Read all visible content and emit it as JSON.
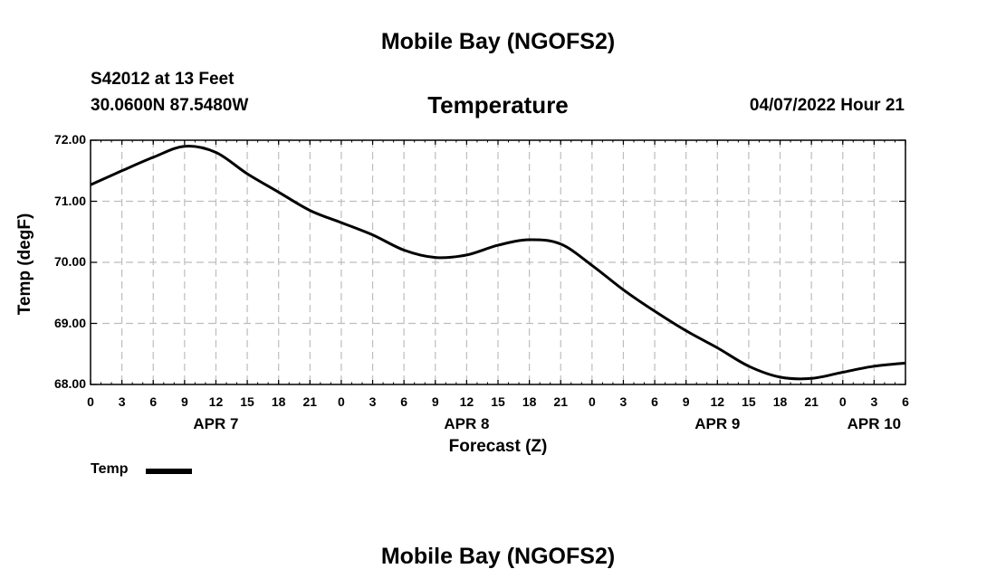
{
  "header": {
    "title_top": "Mobile Bay (NGOFS2)",
    "station": "S42012 at 13 Feet",
    "coords": "30.0600N  87.5480W",
    "datetime": "04/07/2022 Hour 21",
    "title_bottom": "Mobile Bay (NGOFS2)"
  },
  "legend": {
    "label": "Temp"
  },
  "chart_data": {
    "type": "line",
    "title": "Temperature",
    "xlabel": "Forecast (Z)",
    "ylabel": "Temp (degF)",
    "xlim": [
      0,
      78
    ],
    "ylim": [
      68.0,
      72.0
    ],
    "yticks": [
      "68.00",
      "69.00",
      "70.00",
      "71.00",
      "72.00"
    ],
    "xticks": [
      "0",
      "3",
      "6",
      "9",
      "12",
      "15",
      "18",
      "21",
      "0",
      "3",
      "6",
      "9",
      "12",
      "15",
      "18",
      "21",
      "0",
      "3",
      "6",
      "9",
      "12",
      "15",
      "18",
      "21",
      "0",
      "3",
      "6"
    ],
    "day_labels": [
      {
        "label": "APR 7",
        "hour": 12
      },
      {
        "label": "APR 8",
        "hour": 36
      },
      {
        "label": "APR 9",
        "hour": 60
      },
      {
        "label": "APR 10",
        "hour": 75
      }
    ],
    "grid": true,
    "series": [
      {
        "name": "Temp",
        "color": "#000000",
        "x": [
          0,
          3,
          6,
          9,
          12,
          15,
          18,
          21,
          24,
          27,
          30,
          33,
          36,
          39,
          42,
          45,
          48,
          51,
          54,
          57,
          60,
          63,
          66,
          69,
          72,
          75,
          78
        ],
        "values": [
          71.27,
          71.5,
          71.72,
          71.9,
          71.8,
          71.45,
          71.15,
          70.85,
          70.65,
          70.45,
          70.2,
          70.08,
          70.12,
          70.28,
          70.37,
          70.3,
          69.95,
          69.55,
          69.2,
          68.88,
          68.6,
          68.3,
          68.12,
          68.1,
          68.2,
          68.3,
          68.35
        ]
      }
    ]
  }
}
